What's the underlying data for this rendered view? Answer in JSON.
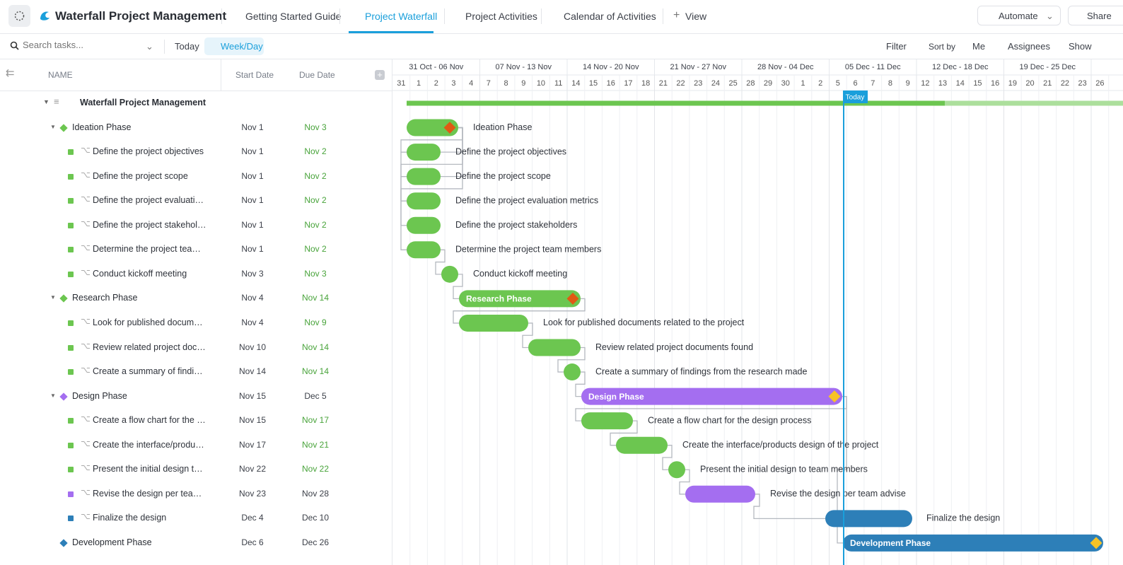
{
  "header": {
    "title": "Waterfall Project Management",
    "tabs": [
      "Getting Started Guide",
      "Project Waterfall",
      "Project Activities",
      "Calendar of Activities"
    ],
    "view_button": "View",
    "automate": "Automate",
    "share": "Share"
  },
  "toolbar": {
    "search_placeholder": "Search tasks...",
    "today": "Today",
    "week_day": "Week/Day",
    "filter": "Filter",
    "sort": "Sort by",
    "me": "Me",
    "assignees": "Assignees",
    "show": "Show"
  },
  "table": {
    "columns": [
      "NAME",
      "Start Date",
      "Due Date"
    ],
    "rows": [
      {
        "name": "Waterfall Project Management"
      },
      {
        "name": "Ideation Phase",
        "start": "Nov 1",
        "due": "Nov 3"
      },
      {
        "name": "Define the project objectives",
        "start": "Nov 1",
        "due": "Nov 2"
      },
      {
        "name": "Define the project scope",
        "start": "Nov 1",
        "due": "Nov 2"
      },
      {
        "name": "Define the project evaluation metrics",
        "start": "Nov 1",
        "due": "Nov 2"
      },
      {
        "name": "Define the project stakeholders",
        "start": "Nov 1",
        "due": "Nov 2"
      },
      {
        "name": "Determine the project team members",
        "start": "Nov 1",
        "due": "Nov 2"
      },
      {
        "name": "Conduct kickoff meeting",
        "start": "Nov 3",
        "due": "Nov 3"
      },
      {
        "name": "Research Phase",
        "start": "Nov 4",
        "due": "Nov 14"
      },
      {
        "name": "Look for published documents related to the project",
        "start": "Nov 4",
        "due": "Nov 9"
      },
      {
        "name": "Review related project documents found",
        "start": "Nov 10",
        "due": "Nov 14"
      },
      {
        "name": "Create a summary of findings from the research made",
        "start": "Nov 14",
        "due": "Nov 14"
      },
      {
        "name": "Design Phase",
        "start": "Nov 15",
        "due": "Dec 5"
      },
      {
        "name": "Create a flow chart for the design process",
        "start": "Nov 15",
        "due": "Nov 17"
      },
      {
        "name": "Create the interface/products design of the project",
        "start": "Nov 17",
        "due": "Nov 21"
      },
      {
        "name": "Present the initial design to team members",
        "start": "Nov 22",
        "due": "Nov 22"
      },
      {
        "name": "Revise the design per team advise",
        "start": "Nov 23",
        "due": "Nov 28"
      },
      {
        "name": "Finalize the design",
        "start": "Dec 4",
        "due": "Dec 10"
      },
      {
        "name": "Development Phase",
        "start": "Dec 6",
        "due": "Dec 26"
      }
    ]
  },
  "timeline": {
    "weeks": [
      "31 Oct - 06 Nov",
      "07 Nov - 13 Nov",
      "14 Nov - 20 Nov",
      "21 Nov - 27 Nov",
      "28 Nov - 04 Dec",
      "05 Dec - 11 Dec",
      "12 Dec - 18 Dec",
      "19 Dec - 25 Dec"
    ],
    "days": [
      31,
      1,
      2,
      3,
      4,
      7,
      8,
      9,
      10,
      11,
      14,
      15,
      16,
      17,
      18,
      21,
      22,
      23,
      24,
      25,
      28,
      29,
      30,
      1,
      2,
      5,
      6,
      7,
      8,
      9,
      12,
      13,
      14,
      15,
      16,
      19,
      20,
      21,
      22,
      23,
      26
    ],
    "today": "Today"
  }
}
